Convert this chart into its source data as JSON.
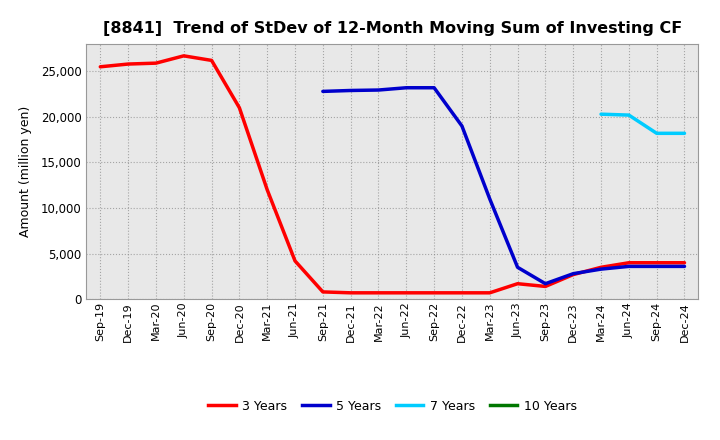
{
  "title": "[8841]  Trend of StDev of 12-Month Moving Sum of Investing CF",
  "ylabel": "Amount (million yen)",
  "plot_bg_color": "#e8e8e8",
  "fig_bg_color": "#ffffff",
  "grid_color": "#888888",
  "ylim": [
    0,
    28000
  ],
  "yticks": [
    0,
    5000,
    10000,
    15000,
    20000,
    25000
  ],
  "series": {
    "3 Years": {
      "color": "#ff0000",
      "data": {
        "Sep-19": 25500,
        "Dec-19": 25800,
        "Mar-20": 25900,
        "Jun-20": 26700,
        "Sep-20": 26200,
        "Dec-20": 21000,
        "Mar-21": 12000,
        "Jun-21": 4200,
        "Sep-21": 800,
        "Dec-21": 700,
        "Mar-22": 700,
        "Jun-22": 700,
        "Sep-22": 700,
        "Dec-22": 700,
        "Mar-23": 700,
        "Jun-23": 1700,
        "Sep-23": 1400,
        "Dec-23": 2700,
        "Mar-24": 3500,
        "Jun-24": 4000,
        "Sep-24": 4000,
        "Dec-24": 4000
      }
    },
    "5 Years": {
      "color": "#0000cc",
      "data": {
        "Sep-21": 22800,
        "Dec-21": 22900,
        "Mar-22": 22950,
        "Jun-22": 23200,
        "Sep-22": 23200,
        "Dec-22": 19000,
        "Mar-23": 11000,
        "Jun-23": 3500,
        "Sep-23": 1700,
        "Dec-23": 2800,
        "Mar-24": 3300,
        "Jun-24": 3600,
        "Sep-24": 3600,
        "Dec-24": 3600
      }
    },
    "7 Years": {
      "color": "#00ccff",
      "data": {
        "Mar-24": 20300,
        "Jun-24": 20200,
        "Sep-24": 18200,
        "Dec-24": 18200
      }
    },
    "10 Years": {
      "color": "#007700",
      "data": {}
    }
  },
  "xtick_labels": [
    "Sep-19",
    "Dec-19",
    "Mar-20",
    "Jun-20",
    "Sep-20",
    "Dec-20",
    "Mar-21",
    "Jun-21",
    "Sep-21",
    "Dec-21",
    "Mar-22",
    "Jun-22",
    "Sep-22",
    "Dec-22",
    "Mar-23",
    "Jun-23",
    "Sep-23",
    "Dec-23",
    "Mar-24",
    "Jun-24",
    "Sep-24",
    "Dec-24"
  ],
  "legend_labels": [
    "3 Years",
    "5 Years",
    "7 Years",
    "10 Years"
  ],
  "legend_colors": [
    "#ff0000",
    "#0000cc",
    "#00ccff",
    "#007700"
  ]
}
